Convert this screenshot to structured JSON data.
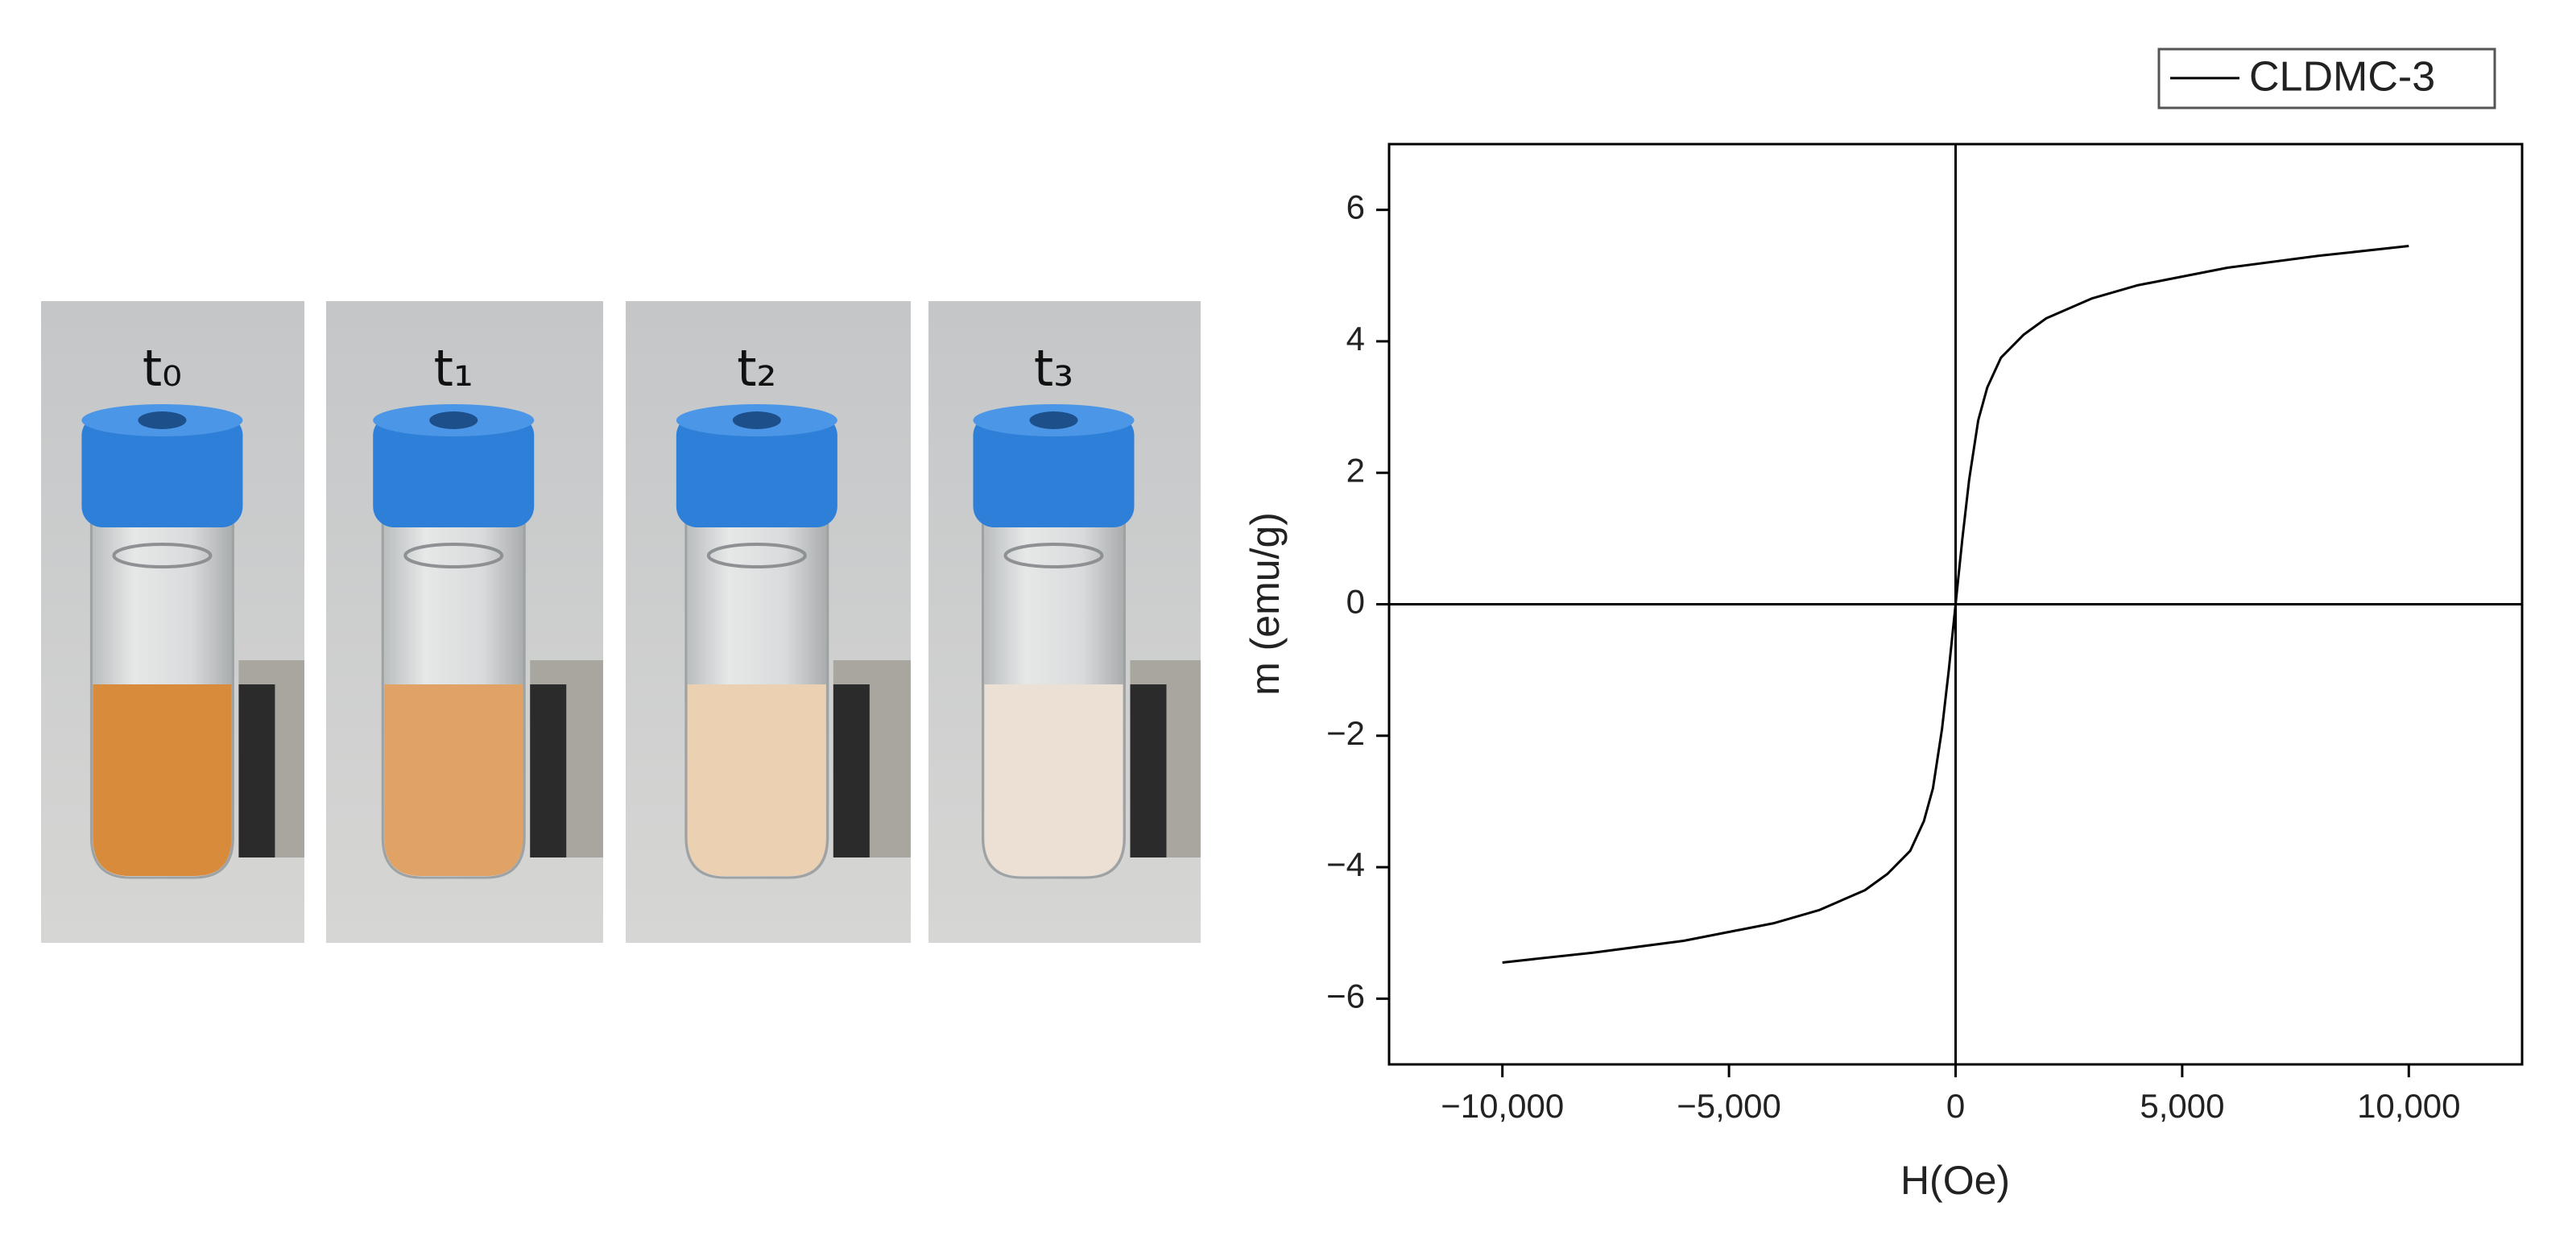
{
  "photos": {
    "labels": [
      "t₀",
      "t₁",
      "t₂",
      "t₃"
    ]
  },
  "chart_data": {
    "type": "line",
    "x_label": "H(Oe)",
    "y_label": "m (emu/g)",
    "x": [
      -10000,
      -8000,
      -6000,
      -4000,
      -3000,
      -2000,
      -1500,
      -1000,
      -700,
      -500,
      -300,
      -150,
      0,
      150,
      300,
      500,
      700,
      1000,
      1500,
      2000,
      3000,
      4000,
      6000,
      8000,
      10000
    ],
    "series": [
      {
        "name": "CLDMC-3",
        "color": "#000000",
        "values": [
          -5.45,
          -5.3,
          -5.12,
          -4.85,
          -4.65,
          -4.35,
          -4.1,
          -3.75,
          -3.3,
          -2.8,
          -1.9,
          -1.0,
          0,
          1.0,
          1.9,
          2.8,
          3.3,
          3.75,
          4.1,
          4.35,
          4.65,
          4.85,
          5.12,
          5.3,
          5.45
        ]
      }
    ],
    "xlim": [
      -12500,
      12500
    ],
    "xticks": [
      {
        "value": -10000,
        "label": "−10,000"
      },
      {
        "value": -5000,
        "label": "−5,000"
      },
      0,
      {
        "value": 5000,
        "label": "5,000"
      },
      {
        "value": 10000,
        "label": "10,000"
      }
    ],
    "ylim": [
      -7,
      7
    ],
    "yticks": [
      {
        "value": -6,
        "label": "−6"
      },
      {
        "value": -4,
        "label": "−4"
      },
      {
        "value": -2,
        "label": "−2"
      },
      0,
      2,
      4,
      6
    ],
    "legend": "top-right",
    "grid": false
  }
}
